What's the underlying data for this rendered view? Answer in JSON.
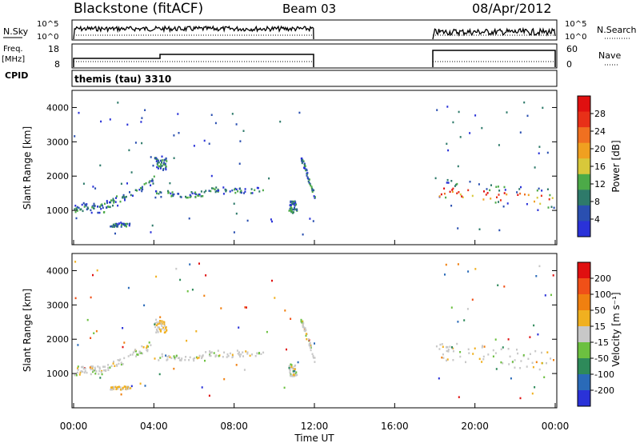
{
  "header": {
    "station": "Blackstone (fitACF)",
    "beam": "Beam 03",
    "date": "08/Apr/2012"
  },
  "left_labels": {
    "nsky": "N.Sky",
    "freq": "Freq.",
    "mhz": "[MHz]",
    "cpid": "CPID"
  },
  "right_labels": {
    "nsearch": "N.Search",
    "nave": "Nave"
  },
  "cpid_text": "themis (tau) 3310",
  "noise_ticks": {
    "left": [
      "10^5",
      "10^0"
    ],
    "right": [
      "10^5",
      "10^0"
    ]
  },
  "freq_ticks": {
    "left": [
      "18",
      "8"
    ],
    "right": [
      "60",
      "0"
    ]
  },
  "x_axis": {
    "label": "Time UT",
    "ticks": [
      "00:00",
      "04:00",
      "08:00",
      "12:00",
      "16:00",
      "20:00",
      "00:00"
    ]
  },
  "power_panel": {
    "ylabel": "Slant Range [km]",
    "yticks": [
      "1000",
      "2000",
      "3000",
      "4000"
    ],
    "colorbar_label": "Power [dB]",
    "colorbar_ticks": [
      "4",
      "8",
      "12",
      "16",
      "20",
      "24",
      "28"
    ],
    "colors": [
      "#2a32d8",
      "#2a4fb0",
      "#2e7a6a",
      "#4caa48",
      "#d8c83a",
      "#f0a020",
      "#f07020",
      "#e83018",
      "#e01010"
    ]
  },
  "velocity_panel": {
    "ylabel": "Slant Range [km]",
    "yticks": [
      "1000",
      "2000",
      "3000",
      "4000"
    ],
    "colorbar_label": "Velocity [m s⁻¹]",
    "colorbar_ticks": [
      "200",
      "100",
      "50",
      "15",
      "-15",
      "-50",
      "-100",
      "-200"
    ],
    "colors": [
      "#2a32d8",
      "#2a6ab8",
      "#2e8a5a",
      "#6cc040",
      "#c8c8c8",
      "#f0b020",
      "#f08010",
      "#f05018",
      "#e01010"
    ]
  },
  "chart_data": {
    "type": "heatmap",
    "x_unit": "hours UT",
    "xlim": [
      0,
      24
    ],
    "ylim": [
      0,
      4500
    ],
    "gap": [
      12,
      18
    ],
    "echo_bands": [
      {
        "t": [
          0.0,
          1.5
        ],
        "r": [
          950,
          1250
        ]
      },
      {
        "t": [
          1.5,
          4.0
        ],
        "r": [
          1150,
          1900
        ]
      },
      {
        "t": [
          4.0,
          6.5
        ],
        "r": [
          1400,
          1600
        ]
      },
      {
        "t": [
          6.5,
          9.5
        ],
        "r": [
          1500,
          1700
        ]
      },
      {
        "t": [
          1.8,
          2.8
        ],
        "r": [
          550,
          650
        ]
      },
      {
        "t": [
          4.0,
          4.6
        ],
        "r": [
          2200,
          2600
        ]
      },
      {
        "t": [
          11.3,
          12.0
        ],
        "r": [
          1400,
          2600
        ]
      },
      {
        "t": [
          10.7,
          11.1
        ],
        "r": [
          950,
          1300
        ]
      },
      {
        "t": [
          18.0,
          24.0
        ],
        "r": [
          1150,
          2000
        ]
      }
    ]
  }
}
